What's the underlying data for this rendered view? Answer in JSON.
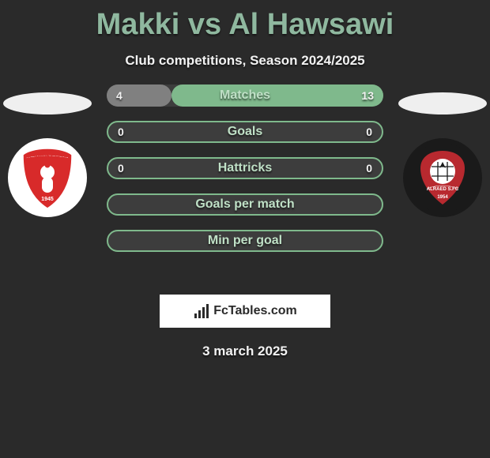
{
  "header": {
    "title": "Makki vs Al Hawsawi",
    "title_color": "#8fb89f",
    "subtitle": "Club competitions, Season 2024/2025",
    "subtitle_color": "#f2f2f2"
  },
  "background_color": "#2a2a2a",
  "left_player": {
    "head_color": "#efefef",
    "badge": {
      "bg": "#ffffff",
      "shield_color": "#d82a2a",
      "text_top": "AL WEHDA CLUB",
      "year": "1945",
      "text_color": "#ffffff"
    }
  },
  "right_player": {
    "head_color": "#efefef",
    "badge": {
      "bg": "#1a1a1a",
      "emblem_color": "#b8292f",
      "ball_color": "#ffffff",
      "year": "1954",
      "name": "ALRAED S.FC",
      "text_color": "#ffffff"
    }
  },
  "stats": [
    {
      "label": "Matches",
      "left_val": "4",
      "right_val": "13",
      "left_pct": 23.5,
      "right_pct": 76.5,
      "left_fill": "#808080",
      "right_fill": "#7fb98c",
      "bar_bg": "#3d3d3d"
    },
    {
      "label": "Goals",
      "left_val": "0",
      "right_val": "0",
      "left_pct": 0,
      "right_pct": 0,
      "left_fill": "#808080",
      "right_fill": "#7fb98c",
      "bar_bg": "#3d3d3d",
      "border": "#7fb98c"
    },
    {
      "label": "Hattricks",
      "left_val": "0",
      "right_val": "0",
      "left_pct": 0,
      "right_pct": 0,
      "left_fill": "#808080",
      "right_fill": "#7fb98c",
      "bar_bg": "#3d3d3d",
      "border": "#7fb98c"
    },
    {
      "label": "Goals per match",
      "left_val": "",
      "right_val": "",
      "left_pct": 0,
      "right_pct": 0,
      "bar_bg": "#3d3d3d",
      "border": "#7fb98c"
    },
    {
      "label": "Min per goal",
      "left_val": "",
      "right_val": "",
      "left_pct": 0,
      "right_pct": 0,
      "bar_bg": "#3d3d3d",
      "border": "#7fb98c"
    }
  ],
  "stat_label_color": "#bfe0c6",
  "stat_val_color": "#f2f2f2",
  "watermark": {
    "text": "FcTables.com",
    "bg": "#ffffff",
    "text_color": "#2a2a2a"
  },
  "date": "3 march 2025",
  "date_color": "#f2f2f2"
}
